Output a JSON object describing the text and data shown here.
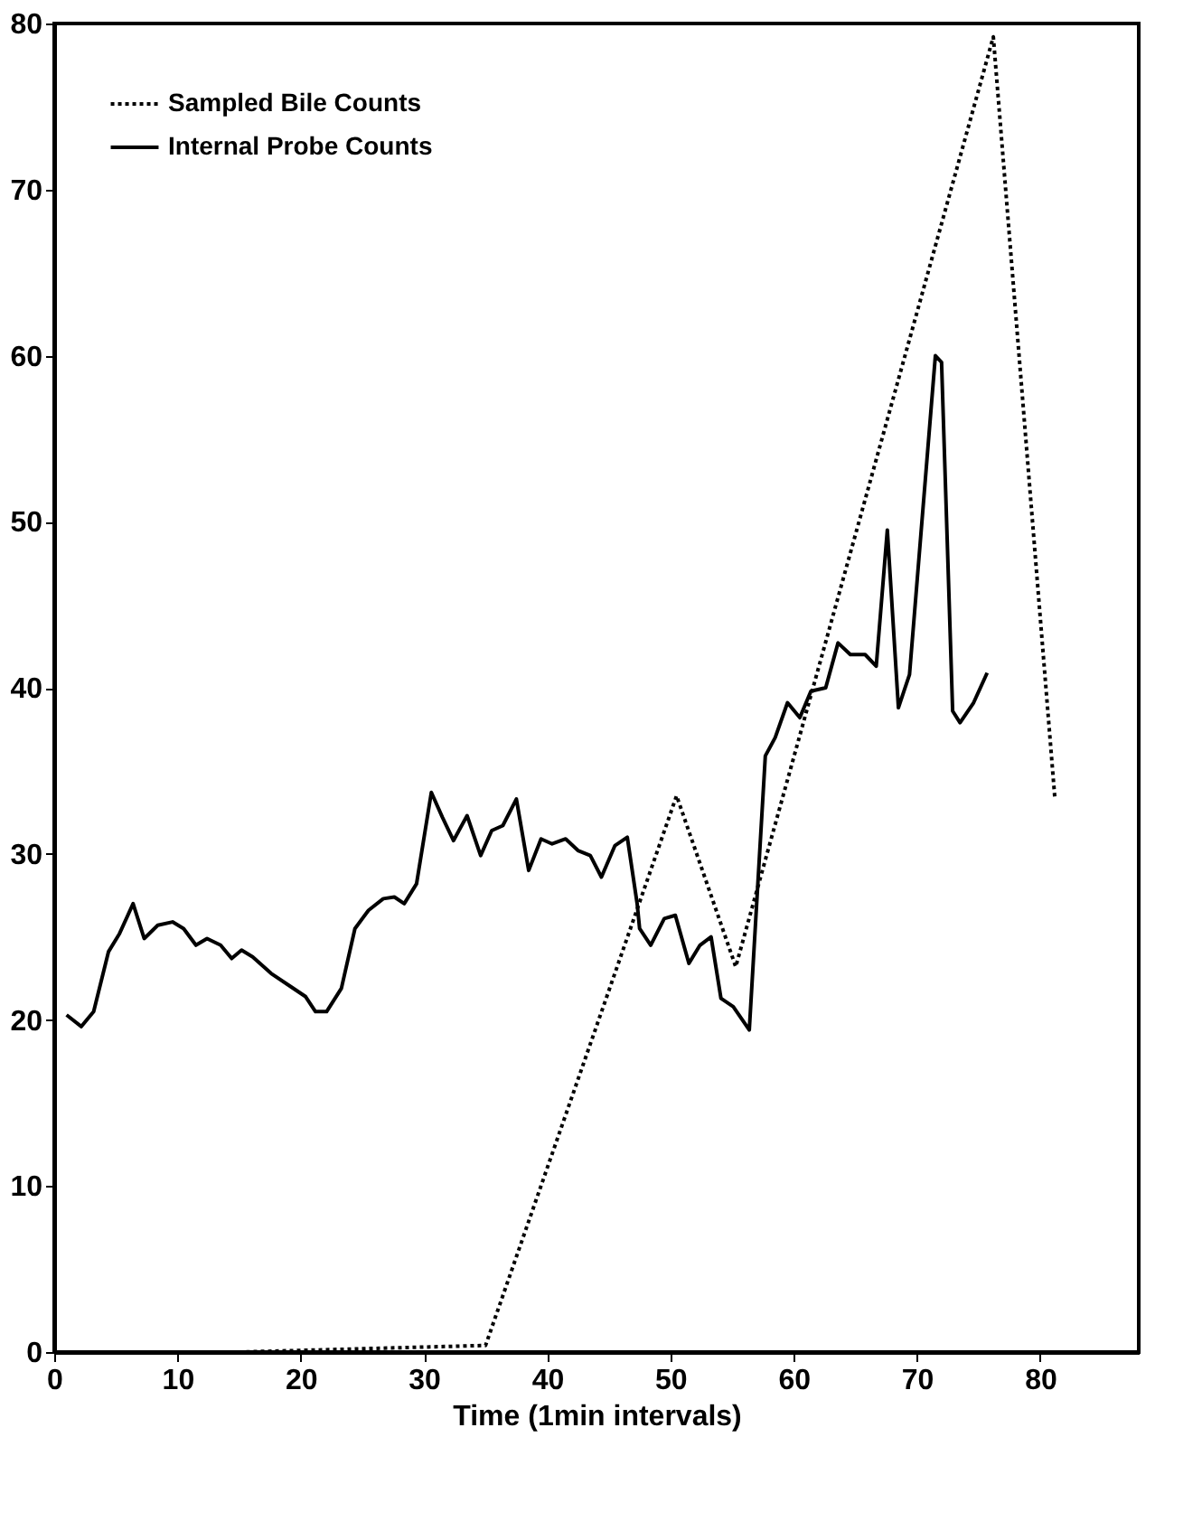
{
  "chart_data": {
    "type": "line",
    "xlabel": "Time (1min intervals)",
    "xlim": [
      0,
      88
    ],
    "ylim": [
      0,
      80
    ],
    "xticks": [
      0,
      10,
      20,
      30,
      40,
      50,
      60,
      70,
      80
    ],
    "yticks": [
      0,
      10,
      20,
      30,
      40,
      50,
      60,
      70,
      80
    ],
    "grid": false,
    "legend": "top left",
    "marker": "none",
    "series": [
      {
        "name": "Sampled Bile Counts",
        "color": "#000000",
        "line_style": "dotted",
        "x": [
          15,
          35,
          50.5,
          55.3,
          76.2,
          81.2
        ],
        "values": [
          0,
          0.4,
          33.5,
          23.2,
          79.2,
          33.3
        ]
      },
      {
        "name": "Internal Probe Counts",
        "color": "#000000",
        "line_style": "solid",
        "x": [
          1.0,
          2.2,
          3.2,
          4.4,
          5.3,
          6.4,
          7.3,
          8.4,
          9.6,
          10.5,
          11.5,
          12.4,
          13.5,
          14.4,
          15.2,
          16.1,
          17.6,
          19.2,
          20.4,
          21.2,
          22.1,
          23.3,
          24.4,
          25.5,
          26.7,
          27.6,
          28.4,
          29.4,
          30.6,
          31.5,
          32.4,
          33.5,
          34.6,
          35.5,
          36.4,
          37.5,
          38.5,
          39.5,
          40.4,
          41.5,
          42.5,
          43.5,
          44.4,
          45.5,
          46.5,
          47.3,
          47.5,
          48.4,
          49.5,
          50.4,
          51.5,
          52.4,
          53.3,
          54.1,
          55.1,
          56.4,
          57.7,
          58.5,
          59.5,
          60.5,
          61.4,
          62.6,
          63.6,
          64.6,
          65.8,
          66.7,
          67.6,
          68.5,
          69.4,
          71.5,
          72.0,
          72.9,
          73.5,
          74.6,
          75.7
        ],
        "values": [
          20.3,
          19.6,
          20.5,
          24.1,
          25.2,
          27.0,
          24.9,
          25.7,
          25.9,
          25.5,
          24.5,
          24.9,
          24.5,
          23.7,
          24.2,
          23.8,
          22.8,
          22.0,
          21.4,
          20.5,
          20.5,
          21.9,
          25.5,
          26.6,
          27.3,
          27.4,
          27.0,
          28.2,
          33.7,
          32.2,
          30.8,
          32.3,
          29.9,
          31.4,
          31.7,
          33.3,
          29.0,
          30.9,
          30.6,
          30.9,
          30.2,
          29.9,
          28.6,
          30.5,
          31.0,
          27.0,
          25.5,
          24.5,
          26.1,
          26.3,
          23.4,
          24.5,
          25.0,
          21.3,
          20.8,
          19.4,
          35.9,
          37.0,
          39.1,
          38.2,
          39.8,
          40.0,
          42.7,
          42.0,
          42.0,
          41.3,
          49.5,
          38.8,
          40.8,
          60.0,
          59.6,
          38.6,
          37.9,
          39.1,
          40.9
        ]
      }
    ]
  }
}
